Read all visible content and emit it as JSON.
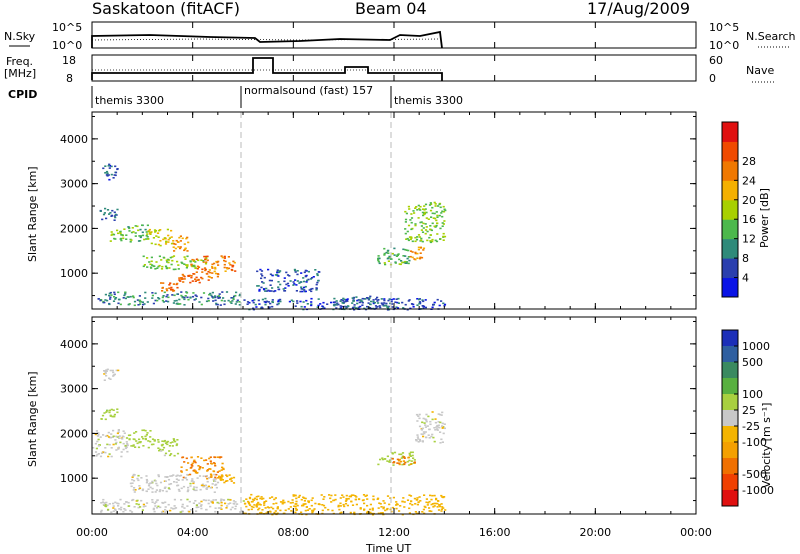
{
  "header": {
    "station": "Saskatoon (fitACF)",
    "beam": "Beam 04",
    "date": "17/Aug/2009"
  },
  "strips": {
    "nsky_label": "N.Sky",
    "nsky_ticks": [
      "10^5",
      "10^0"
    ],
    "nsearch_label": "N.Search",
    "freq_label_line1": "Freq.",
    "freq_label_line2": "[MHz]",
    "freq_ticks": [
      "18",
      "8"
    ],
    "nave_label": "Nave",
    "nave_ticks": [
      "60",
      "0"
    ],
    "cpid_label": "CPID",
    "cpid_segments": [
      {
        "label": "themis 3300",
        "start_h": 0,
        "end_h": 6
      },
      {
        "label": "normalsound (fast) 157",
        "start_h": 6,
        "end_h": 12
      },
      {
        "label": "themis 3300",
        "start_h": 12,
        "end_h": 14
      }
    ]
  },
  "axes": {
    "ylabel": "Slant Range [km]",
    "xlabel": "Time UT",
    "y_ticks": [
      "1000",
      "2000",
      "3000",
      "4000"
    ],
    "x_ticks": [
      "00:00",
      "04:00",
      "08:00",
      "12:00",
      "16:00",
      "20:00",
      "00:00"
    ]
  },
  "power_scale": {
    "label": "Power [dB]",
    "ticks": [
      "4",
      "8",
      "12",
      "16",
      "20",
      "24",
      "28"
    ],
    "colors": [
      "#0a14e6",
      "#2a3fae",
      "#2f8a7a",
      "#4cb84c",
      "#a8d000",
      "#f4b000",
      "#f07800",
      "#f04a00",
      "#e01010"
    ]
  },
  "velocity_scale": {
    "label": "Velocity [m s⁻¹]",
    "ticks": [
      "1000",
      "500",
      "100",
      "25",
      "-25",
      "-100",
      "-500",
      "-1000"
    ],
    "colors": [
      "#1c2fb8",
      "#2f5fa0",
      "#3a8a60",
      "#58b040",
      "#a8d040",
      "#c8c8c8",
      "#f4b400",
      "#f4a000",
      "#f07000",
      "#f04000",
      "#e01010"
    ]
  },
  "chart_data": [
    {
      "type": "heatmap",
      "name": "power",
      "ylabel": "Slant Range [km]",
      "xlabel": "Time UT",
      "xlim": [
        0,
        24
      ],
      "ylim": [
        200,
        4600
      ],
      "data_end_h": 14.0,
      "cells": [
        {
          "t0": 0.6,
          "t1": 1.2,
          "r0": 1700,
          "r1": 2000,
          "v": 16
        },
        {
          "t0": 0.3,
          "t1": 1.0,
          "r0": 2200,
          "r1": 2500,
          "v": 8
        },
        {
          "t0": 0.4,
          "t1": 1.1,
          "r0": 3100,
          "r1": 3450,
          "v": 6
        },
        {
          "t0": 1.2,
          "t1": 2.2,
          "r0": 1700,
          "r1": 2100,
          "v": 14
        },
        {
          "t0": 2.2,
          "t1": 3.2,
          "r0": 1600,
          "r1": 2000,
          "v": 20
        },
        {
          "t0": 3.2,
          "t1": 3.8,
          "r0": 1500,
          "r1": 1900,
          "v": 24
        },
        {
          "t0": 3.9,
          "t1": 4.6,
          "r0": 800,
          "r1": 1400,
          "v": 28
        },
        {
          "t0": 4.6,
          "t1": 5.0,
          "r0": 900,
          "r1": 1300,
          "v": 24
        },
        {
          "t0": 5.1,
          "t1": 5.7,
          "r0": 1000,
          "r1": 1400,
          "v": 26
        },
        {
          "t0": 2.7,
          "t1": 3.4,
          "r0": 600,
          "r1": 800,
          "v": 28
        },
        {
          "t0": 3.4,
          "t1": 4.0,
          "r0": 800,
          "r1": 1000,
          "v": 28
        },
        {
          "t0": 0.2,
          "t1": 6.0,
          "r0": 300,
          "r1": 600,
          "v": 10
        },
        {
          "t0": 2.0,
          "t1": 4.5,
          "r0": 1100,
          "r1": 1400,
          "v": 16
        },
        {
          "t0": 6.0,
          "t1": 14.0,
          "r0": 200,
          "r1": 450,
          "v": 6
        },
        {
          "t0": 6.5,
          "t1": 9.0,
          "r0": 600,
          "r1": 1100,
          "v": 6
        },
        {
          "t0": 11.2,
          "t1": 12.6,
          "r0": 1200,
          "r1": 1600,
          "v": 14
        },
        {
          "t0": 12.6,
          "t1": 13.2,
          "r0": 1300,
          "r1": 1600,
          "v": 24
        },
        {
          "t0": 12.4,
          "t1": 14.0,
          "r0": 1700,
          "r1": 2600,
          "v": 16
        },
        {
          "t0": 9.5,
          "t1": 12.0,
          "r0": 200,
          "r1": 500,
          "v": 8
        }
      ]
    },
    {
      "type": "heatmap",
      "name": "velocity",
      "ylabel": "Slant Range [km]",
      "xlabel": "Time UT",
      "xlim": [
        0,
        24
      ],
      "ylim": [
        200,
        4600
      ],
      "data_end_h": 14.0,
      "cells": [
        {
          "t0": 0.0,
          "t1": 1.4,
          "r0": 1500,
          "r1": 2100,
          "v": 0
        },
        {
          "t0": 1.4,
          "t1": 2.4,
          "r0": 1700,
          "r1": 2100,
          "v": 60
        },
        {
          "t0": 2.4,
          "t1": 3.4,
          "r0": 1500,
          "r1": 1900,
          "v": 50
        },
        {
          "t0": 0.3,
          "t1": 1.0,
          "r0": 2300,
          "r1": 2600,
          "v": 80
        },
        {
          "t0": 0.4,
          "t1": 1.0,
          "r0": 3200,
          "r1": 3450,
          "v": 0
        },
        {
          "t0": 3.5,
          "t1": 5.2,
          "r0": 1000,
          "r1": 1500,
          "v": -300
        },
        {
          "t0": 5.0,
          "t1": 5.6,
          "r0": 900,
          "r1": 1100,
          "v": -80
        },
        {
          "t0": 1.5,
          "t1": 5.0,
          "r0": 700,
          "r1": 1100,
          "v": 0
        },
        {
          "t0": 0.3,
          "t1": 6.0,
          "r0": 250,
          "r1": 550,
          "v": 0
        },
        {
          "t0": 6.0,
          "t1": 14.0,
          "r0": 200,
          "r1": 650,
          "v": -60
        },
        {
          "t0": 11.3,
          "t1": 12.8,
          "r0": 1300,
          "r1": 1600,
          "v": 60
        },
        {
          "t0": 12.8,
          "t1": 14.0,
          "r0": 1800,
          "r1": 2500,
          "v": 0
        },
        {
          "t0": 11.8,
          "t1": 12.8,
          "r0": 1300,
          "r1": 1500,
          "v": -300
        }
      ]
    }
  ]
}
